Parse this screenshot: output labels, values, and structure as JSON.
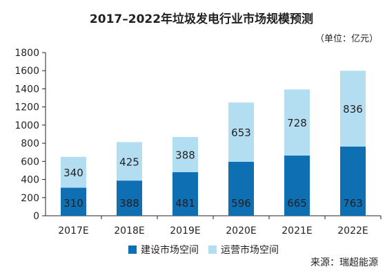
{
  "chart_data": {
    "type": "bar",
    "stacked": true,
    "title": "2017–2022年垃圾发电行业市场规模预测",
    "unit_label": "（单位：亿元）",
    "categories": [
      "2017E",
      "2018E",
      "2019E",
      "2020E",
      "2021E",
      "2022E"
    ],
    "series": [
      {
        "name": "建设市场空间",
        "color": "#0e6fb3",
        "values": [
          310,
          388,
          481,
          596,
          665,
          763
        ]
      },
      {
        "name": "运营市场空间",
        "color": "#b3def2",
        "values": [
          340,
          425,
          388,
          653,
          728,
          836
        ]
      }
    ],
    "ylim": [
      0,
      1800
    ],
    "yticks": [
      0,
      200,
      400,
      600,
      800,
      1000,
      1200,
      1400,
      1600,
      1800
    ],
    "grid": false,
    "legend": "bottom",
    "source": "来源：瑞超能源"
  }
}
